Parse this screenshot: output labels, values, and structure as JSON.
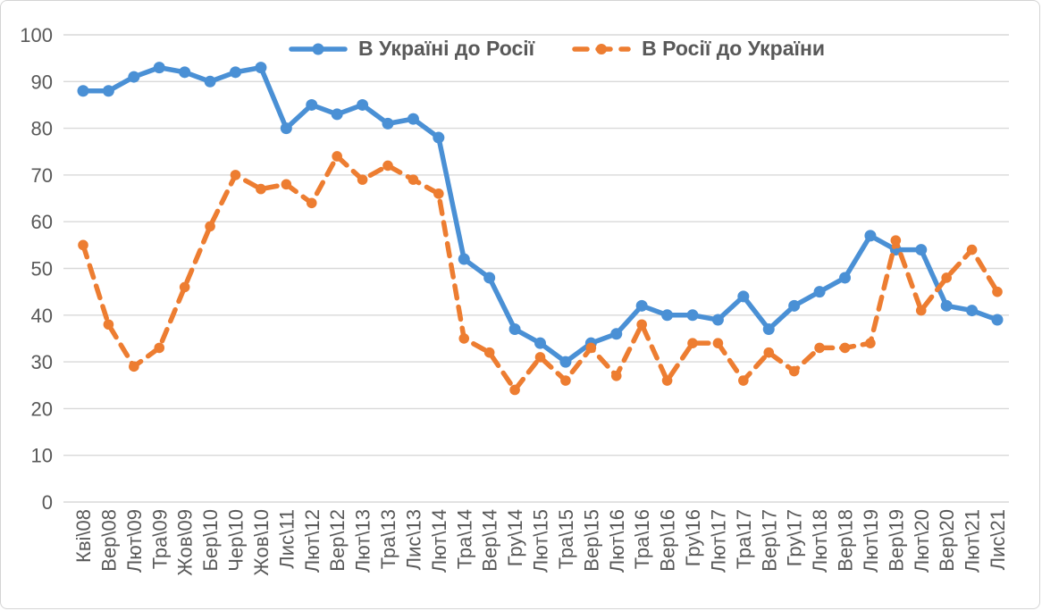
{
  "chart_data": {
    "type": "line",
    "title": "",
    "xlabel": "",
    "ylabel": "",
    "ylim": [
      0,
      100
    ],
    "yticks": [
      0,
      10,
      20,
      30,
      40,
      50,
      60,
      70,
      80,
      90,
      100
    ],
    "grid": true,
    "legend_position": "top-center",
    "colors": {
      "grid": "#d9d9d9",
      "text": "#595959"
    },
    "categories": [
      "Кві\\08",
      "Вер\\08",
      "Лют\\09",
      "Тра\\09",
      "Жов\\09",
      "Бер\\10",
      "Чер\\10",
      "Жов\\10",
      "Лис\\11",
      "Лют\\12",
      "Вер\\12",
      "Лют\\13",
      "Тра\\13",
      "Лис\\13",
      "Лют\\14",
      "Тра\\14",
      "Вер\\14",
      "Гру\\14",
      "Лют\\15",
      "Тра\\15",
      "Вер\\15",
      "Лют\\16",
      "Тра\\16",
      "Вер\\16",
      "Гру\\16",
      "Лют\\17",
      "Тра\\17",
      "Вер\\17",
      "Гру\\17",
      "Лют\\18",
      "Вер\\18",
      "Лют\\19",
      "Вер\\19",
      "Лют\\20",
      "Вер\\20",
      "Лют\\21",
      "Лис\\21"
    ],
    "series": [
      {
        "name": "В Україні до Росії",
        "color": "#4a90d5",
        "style": "solid",
        "marker": "circle",
        "values": [
          88,
          88,
          91,
          93,
          92,
          90,
          92,
          93,
          80,
          85,
          83,
          85,
          81,
          82,
          78,
          52,
          48,
          37,
          34,
          30,
          34,
          36,
          42,
          40,
          40,
          39,
          44,
          37,
          42,
          45,
          48,
          57,
          54,
          54,
          42,
          41,
          39
        ]
      },
      {
        "name": "В Росії до України",
        "color": "#ed7d31",
        "style": "dashed",
        "marker": "circle",
        "values": [
          55,
          38,
          29,
          33,
          46,
          59,
          70,
          67,
          68,
          64,
          74,
          69,
          72,
          69,
          66,
          35,
          32,
          24,
          31,
          26,
          33,
          27,
          38,
          26,
          34,
          34,
          26,
          32,
          28,
          33,
          33,
          34,
          56,
          41,
          48,
          54,
          45
        ]
      }
    ]
  }
}
